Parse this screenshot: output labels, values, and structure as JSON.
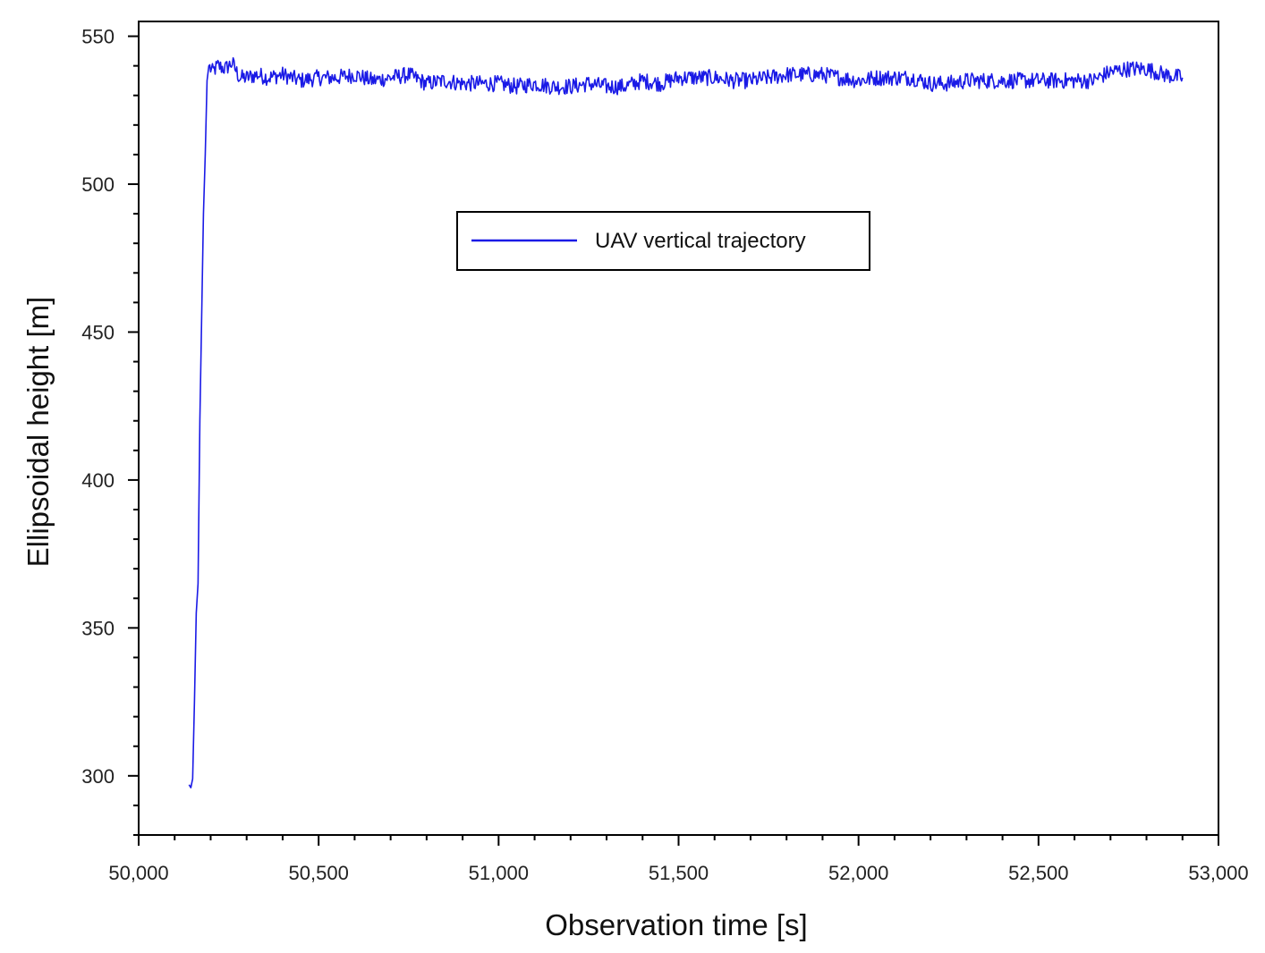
{
  "chart_data": {
    "type": "line",
    "title": "",
    "xlabel": "Observation time [s]",
    "ylabel": "Ellipsoidal height [m]",
    "xlim": [
      50000,
      53000
    ],
    "ylim": [
      280,
      555
    ],
    "x_ticks": [
      50000,
      50500,
      51000,
      51500,
      52000,
      52500,
      53000
    ],
    "x_tick_labels": [
      "50,000",
      "50,500",
      "51,000",
      "51,500",
      "52,000",
      "52,500",
      "53,000"
    ],
    "y_ticks": [
      300,
      350,
      400,
      450,
      500,
      550
    ],
    "y_tick_labels": [
      "300",
      "350",
      "400",
      "450",
      "500",
      "550"
    ],
    "grid": false,
    "legend": {
      "placement": "upper-center",
      "entries": [
        "UAV vertical trajectory"
      ]
    },
    "series": [
      {
        "name": "UAV vertical trajectory",
        "color": "#1a1ae6",
        "points": [
          [
            50140,
            297
          ],
          [
            50145,
            296
          ],
          [
            50150,
            299
          ],
          [
            50155,
            325
          ],
          [
            50160,
            355
          ],
          [
            50165,
            365
          ],
          [
            50170,
            420
          ],
          [
            50175,
            455
          ],
          [
            50180,
            490
          ],
          [
            50185,
            510
          ],
          [
            50190,
            535
          ],
          [
            50195,
            540
          ],
          [
            50205,
            538
          ],
          [
            50220,
            540
          ],
          [
            50240,
            539
          ],
          [
            50260,
            541
          ],
          [
            50280,
            536
          ],
          [
            50300,
            536
          ],
          [
            50330,
            537
          ],
          [
            50360,
            536
          ],
          [
            50400,
            537
          ],
          [
            50450,
            535
          ],
          [
            50500,
            536
          ],
          [
            50550,
            536
          ],
          [
            50600,
            537
          ],
          [
            50650,
            535
          ],
          [
            50700,
            536
          ],
          [
            50750,
            537
          ],
          [
            50800,
            534
          ],
          [
            50850,
            535
          ],
          [
            50900,
            534
          ],
          [
            50950,
            534
          ],
          [
            51000,
            534
          ],
          [
            51050,
            533
          ],
          [
            51100,
            534
          ],
          [
            51150,
            533
          ],
          [
            51200,
            533
          ],
          [
            51250,
            534
          ],
          [
            51300,
            533
          ],
          [
            51350,
            533
          ],
          [
            51400,
            535
          ],
          [
            51450,
            534
          ],
          [
            51500,
            536
          ],
          [
            51550,
            536
          ],
          [
            51600,
            536
          ],
          [
            51650,
            535
          ],
          [
            51700,
            535
          ],
          [
            51750,
            536
          ],
          [
            51800,
            537
          ],
          [
            51850,
            537
          ],
          [
            51900,
            537
          ],
          [
            51950,
            536
          ],
          [
            52000,
            535
          ],
          [
            52050,
            536
          ],
          [
            52100,
            536
          ],
          [
            52150,
            536
          ],
          [
            52200,
            534
          ],
          [
            52250,
            534
          ],
          [
            52300,
            535
          ],
          [
            52350,
            535
          ],
          [
            52400,
            535
          ],
          [
            52450,
            535
          ],
          [
            52500,
            535
          ],
          [
            52550,
            535
          ],
          [
            52600,
            535
          ],
          [
            52650,
            535
          ],
          [
            52700,
            538
          ],
          [
            52750,
            539
          ],
          [
            52800,
            539
          ],
          [
            52850,
            537
          ],
          [
            52900,
            536
          ]
        ]
      }
    ]
  }
}
